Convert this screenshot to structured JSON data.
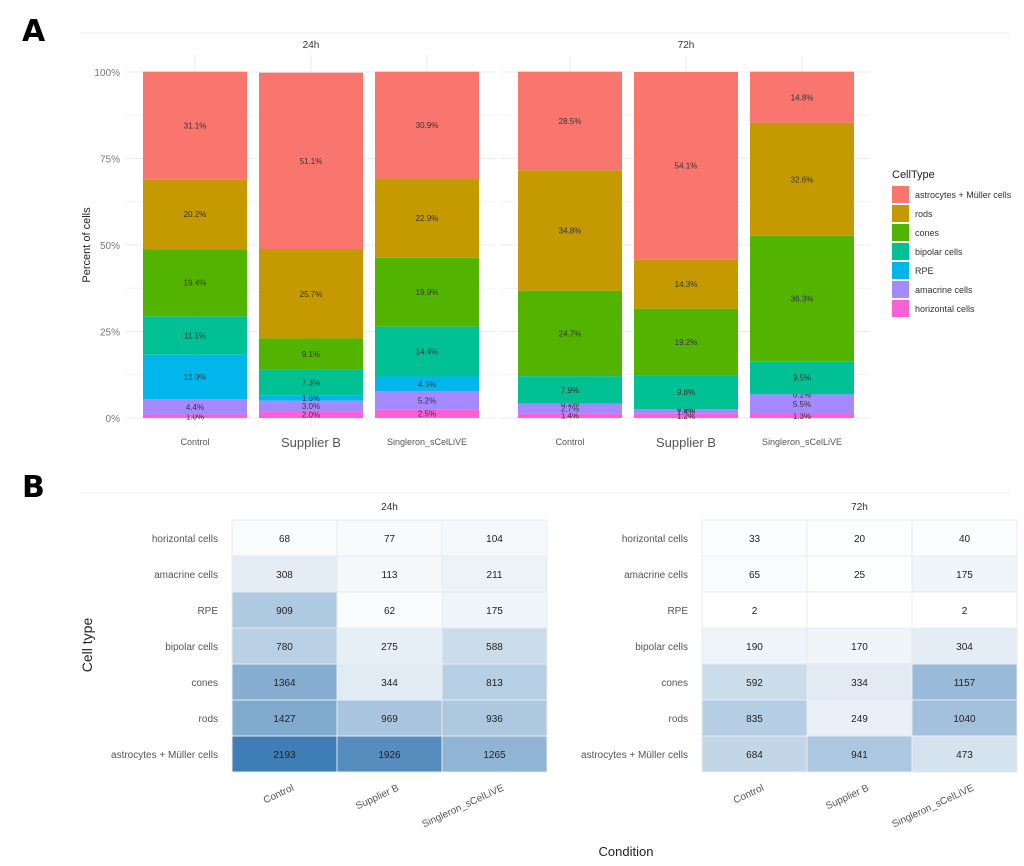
{
  "panels": {
    "a_label": "A",
    "b_label": "B"
  },
  "chart_data": [
    {
      "type": "bar",
      "stacked": true,
      "panel": "A",
      "facets": [
        "24h",
        "72h"
      ],
      "categories": [
        "Control",
        "Supplier B",
        "Singleron_sCelLiVE"
      ],
      "ylabel": "Percent of cells",
      "xlabel": "",
      "ylim": [
        0,
        100
      ],
      "yticks": [
        "0%",
        "25%",
        "50%",
        "75%",
        "100%"
      ],
      "grid": true,
      "legend": {
        "title": "CellType",
        "position": "right"
      },
      "series_order_bottom_to_top": [
        "horizontal cells",
        "amacrine cells",
        "RPE",
        "bipolar cells",
        "cones",
        "rods",
        "astrocytes + Müller cells"
      ],
      "series": [
        {
          "name": "astrocytes + Müller cells",
          "color": "#F8766D",
          "values": {
            "24h": [
              31.1,
              51.1,
              30.9
            ],
            "72h": [
              28.5,
              54.1,
              14.8
            ]
          },
          "labels": {
            "24h": [
              "31.1%",
              "51.1%",
              "30.9%"
            ],
            "72h": [
              "28.5%",
              "54.1%",
              "14.8%"
            ]
          }
        },
        {
          "name": "rods",
          "color": "#C49A00",
          "values": {
            "24h": [
              20.2,
              25.7,
              22.9
            ],
            "72h": [
              34.8,
              14.3,
              32.6
            ]
          },
          "labels": {
            "24h": [
              "20.2%",
              "25.7%",
              "22.9%"
            ],
            "72h": [
              "34.8%",
              "14.3%",
              "32.6%"
            ]
          }
        },
        {
          "name": "cones",
          "color": "#53B400",
          "values": {
            "24h": [
              19.4,
              9.1,
              19.9
            ],
            "72h": [
              24.7,
              19.2,
              36.3
            ]
          },
          "labels": {
            "24h": [
              "19.4%",
              "9.1%",
              "19.9%"
            ],
            "72h": [
              "24.7%",
              "19.2%",
              "36.3%"
            ]
          }
        },
        {
          "name": "bipolar cells",
          "color": "#00C094",
          "values": {
            "24h": [
              11.1,
              7.3,
              14.4
            ],
            "72h": [
              7.9,
              9.8,
              9.5
            ]
          },
          "labels": {
            "24h": [
              "11.1%",
              "7.3%",
              "14.4%"
            ],
            "72h": [
              "7.9%",
              "9.8%",
              "9.5%"
            ]
          }
        },
        {
          "name": "RPE",
          "color": "#00B6EB",
          "values": {
            "24h": [
              12.9,
              1.6,
              4.3
            ],
            "72h": [
              0.1,
              0.0,
              0.1
            ]
          },
          "labels": {
            "24h": [
              "12.9%",
              "1.6%",
              "4.3%"
            ],
            "72h": [
              "0.1%",
              "0.0%",
              "0.1%"
            ]
          }
        },
        {
          "name": "amacrine cells",
          "color": "#A58AFF",
          "values": {
            "24h": [
              4.4,
              3.0,
              5.2
            ],
            "72h": [
              2.7,
              1.4,
              5.5
            ]
          },
          "labels": {
            "24h": [
              "4.4%",
              "3.0%",
              "5.2%"
            ],
            "72h": [
              "2.7%",
              "1.4%",
              "5.5%"
            ]
          }
        },
        {
          "name": "horizontal cells",
          "color": "#FB61D7",
          "values": {
            "24h": [
              1.0,
              2.0,
              2.5
            ],
            "72h": [
              1.4,
              1.2,
              1.3
            ]
          },
          "labels": {
            "24h": [
              "1.0%",
              "2.0%",
              "2.5%"
            ],
            "72h": [
              "1.4%",
              "1.2%",
              "1.3%"
            ]
          }
        }
      ]
    },
    {
      "type": "heatmap",
      "panel": "B",
      "facets": [
        "24h",
        "72h"
      ],
      "xlabel": "Condition",
      "ylabel": "Cell type",
      "x": [
        "Control",
        "Supplier B",
        "Singleron_sCelLiVE"
      ],
      "y_top_to_bottom": [
        "horizontal cells",
        "amacrine cells",
        "RPE",
        "bipolar cells",
        "cones",
        "rods",
        "astrocytes + Müller cells"
      ],
      "color_low": "#FFFFFF",
      "color_high": "#3E7DB5",
      "value_max": 2193,
      "values": {
        "24h": [
          [
            68,
            77,
            104
          ],
          [
            308,
            113,
            211
          ],
          [
            909,
            62,
            175
          ],
          [
            780,
            275,
            588
          ],
          [
            1364,
            344,
            813
          ],
          [
            1427,
            969,
            936
          ],
          [
            2193,
            1926,
            1265
          ]
        ],
        "72h": [
          [
            33,
            20,
            40
          ],
          [
            65,
            25,
            175
          ],
          [
            2,
            null,
            2
          ],
          [
            190,
            170,
            304
          ],
          [
            592,
            334,
            1157
          ],
          [
            835,
            249,
            1040
          ],
          [
            684,
            941,
            473
          ]
        ]
      }
    }
  ]
}
